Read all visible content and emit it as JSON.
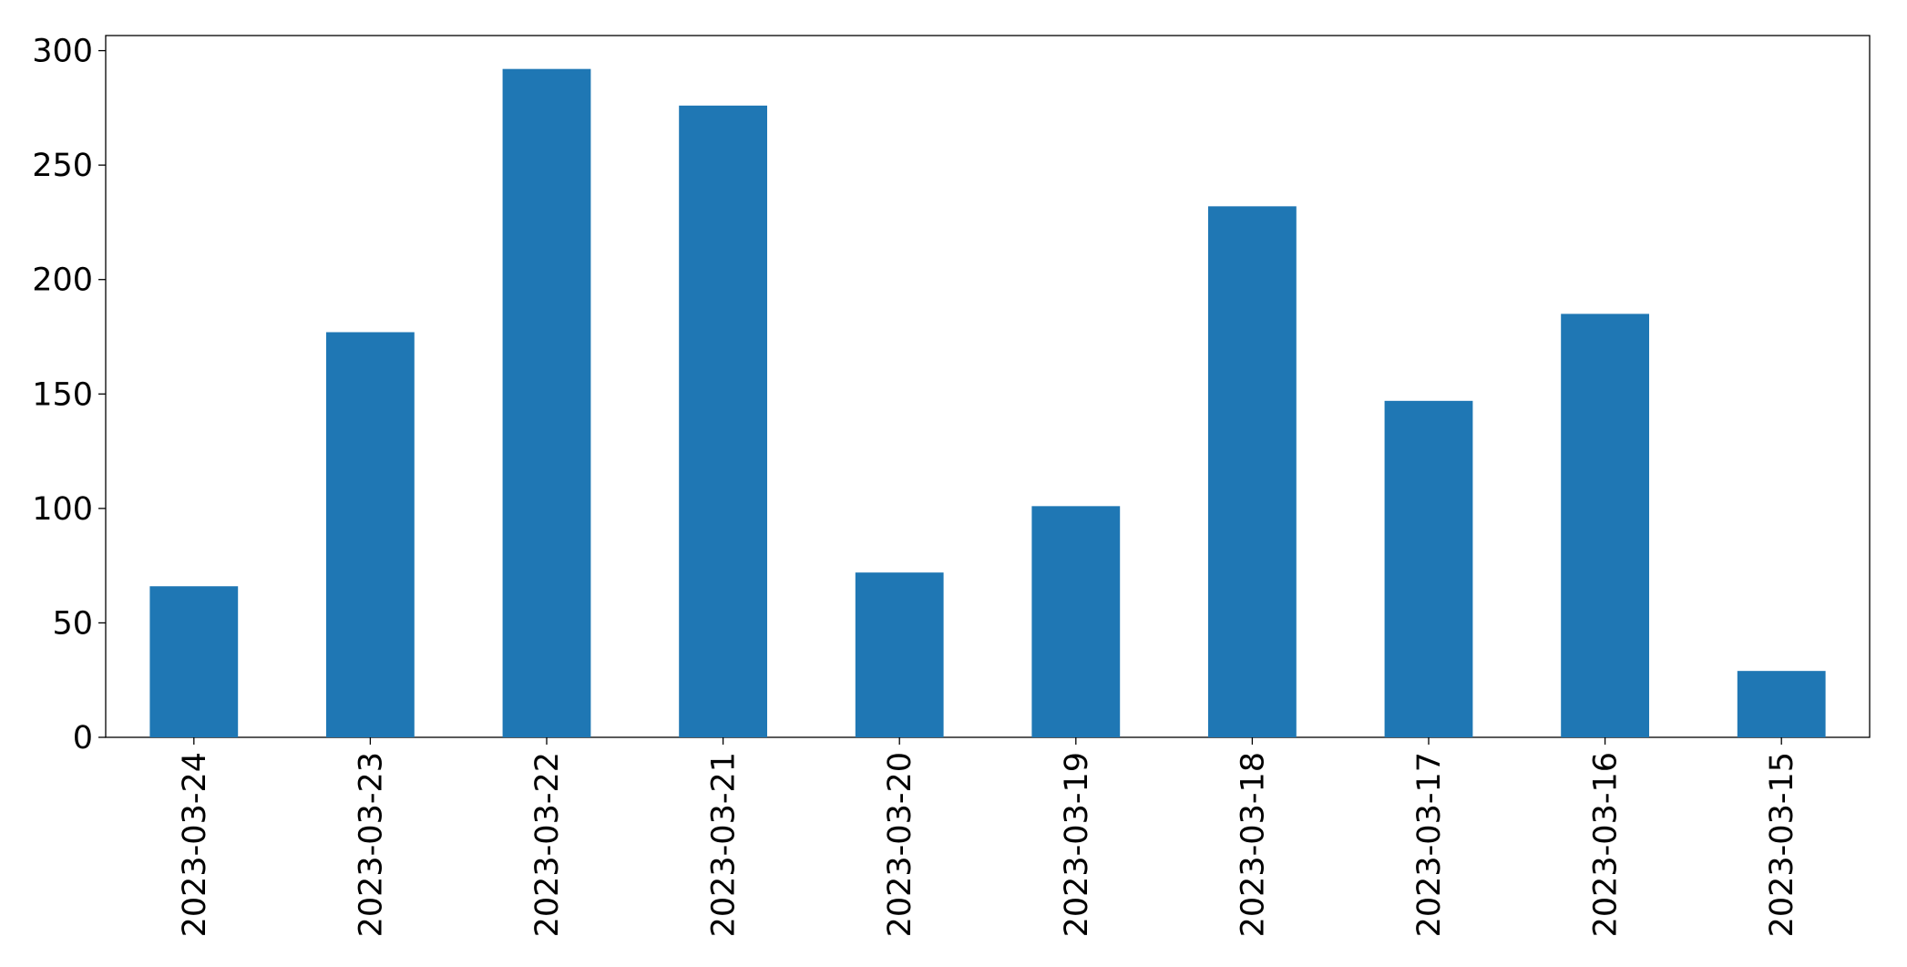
{
  "chart_data": {
    "type": "bar",
    "categories": [
      "2023-03-24",
      "2023-03-23",
      "2023-03-22",
      "2023-03-21",
      "2023-03-20",
      "2023-03-19",
      "2023-03-18",
      "2023-03-17",
      "2023-03-16",
      "2023-03-15"
    ],
    "values": [
      66,
      177,
      292,
      276,
      72,
      101,
      232,
      147,
      185,
      29
    ],
    "color": "#1f77b4",
    "ylim": [
      0,
      306.6
    ],
    "yticks": [
      0,
      50,
      100,
      150,
      200,
      250,
      300
    ],
    "grid": false
  }
}
